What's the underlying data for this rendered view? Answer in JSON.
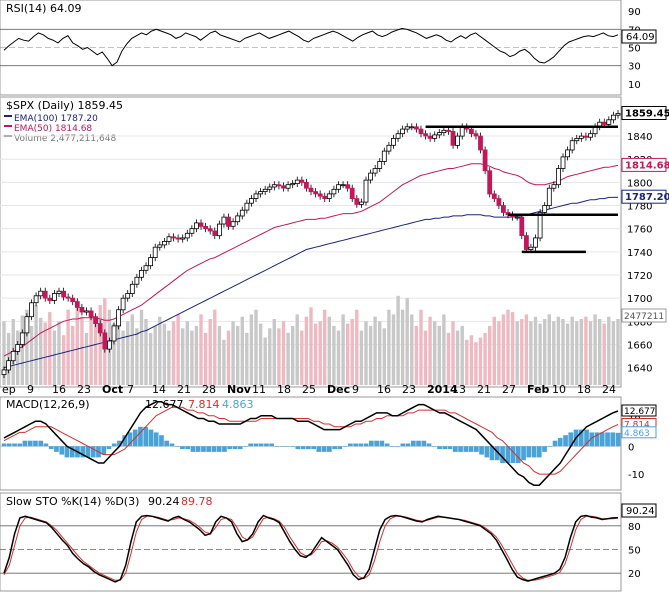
{
  "chart_data": {
    "type": "stock-chart",
    "symbol_label": "$SPX (Daily) 1859.45",
    "price_label": "1859.45",
    "x_tick_labels": [
      "ep",
      "9",
      "16",
      "23",
      "Oct",
      "7",
      "14",
      "21",
      "28",
      "Nov",
      "11",
      "18",
      "25",
      "Dec",
      "9",
      "16",
      "23",
      "2014",
      "13",
      "21",
      "27",
      "Feb",
      "10",
      "18",
      "24"
    ],
    "rsi": {
      "title": "RSI(14) 64.09",
      "value_label": "64.09",
      "y_ticks": [
        "90",
        "70",
        "50",
        "30",
        "10"
      ],
      "ylim": [
        0,
        100
      ],
      "guide_levels": [
        70,
        30
      ],
      "values": [
        47,
        52,
        56,
        60,
        58,
        57,
        62,
        66,
        64,
        60,
        58,
        55,
        60,
        63,
        55,
        52,
        48,
        50,
        46,
        42,
        45,
        38,
        30,
        34,
        46,
        54,
        60,
        63,
        66,
        64,
        68,
        70,
        68,
        66,
        64,
        60,
        62,
        66,
        64,
        62,
        58,
        62,
        66,
        68,
        64,
        62,
        60,
        58,
        56,
        60,
        62,
        64,
        66,
        63,
        60,
        62,
        64,
        66,
        68,
        65,
        62,
        58,
        56,
        60,
        62,
        64,
        66,
        68,
        66,
        63,
        60,
        57,
        61,
        64,
        66,
        68,
        64,
        62,
        64,
        67,
        69,
        71,
        70,
        68,
        66,
        63,
        60,
        62,
        64,
        62,
        58,
        56,
        60,
        63,
        60,
        64,
        66,
        62,
        58,
        54,
        50,
        46,
        44,
        40,
        42,
        46,
        48,
        44,
        38,
        34,
        33,
        36,
        40,
        46,
        52,
        56,
        58,
        60,
        62,
        63,
        62,
        64,
        66,
        63,
        62,
        64
      ]
    },
    "price": {
      "ylim": [
        1625,
        1872
      ],
      "y_ticks": [
        "1840",
        "1820",
        "1800",
        "1780",
        "1760",
        "1740",
        "1720",
        "1700",
        "1680",
        "1660",
        "1640"
      ],
      "legend": [
        {
          "label": "EMA(100) 1787.20",
          "color": "#1a237e"
        },
        {
          "label": "EMA(50) 1814.68",
          "color": "#c2185b"
        },
        {
          "label": "Volume 2,477,211,648",
          "color": "#777777"
        }
      ],
      "tags": [
        {
          "text": "1859.45",
          "value": 1859.45,
          "color": "#000000"
        },
        {
          "text": "1814.68",
          "value": 1814.68,
          "color": "#c2185b"
        },
        {
          "text": "1787.20",
          "value": 1787.2,
          "color": "#1a237e"
        }
      ],
      "volume_tag": "2477211",
      "close": [
        1638,
        1646,
        1654,
        1660,
        1670,
        1684,
        1696,
        1702,
        1706,
        1700,
        1698,
        1704,
        1706,
        1701,
        1700,
        1697,
        1692,
        1688,
        1689,
        1684,
        1678,
        1670,
        1656,
        1663,
        1676,
        1690,
        1700,
        1704,
        1712,
        1718,
        1724,
        1728,
        1735,
        1744,
        1746,
        1749,
        1753,
        1752,
        1751,
        1752,
        1756,
        1760,
        1765,
        1762,
        1760,
        1758,
        1754,
        1764,
        1770,
        1762,
        1766,
        1771,
        1776,
        1782,
        1786,
        1790,
        1792,
        1794,
        1796,
        1798,
        1797,
        1795,
        1798,
        1799,
        1802,
        1800,
        1795,
        1792,
        1790,
        1788,
        1786,
        1790,
        1794,
        1798,
        1798,
        1795,
        1786,
        1781,
        1783,
        1802,
        1808,
        1812,
        1818,
        1827,
        1832,
        1838,
        1842,
        1846,
        1848,
        1848,
        1846,
        1842,
        1840,
        1838,
        1841,
        1843,
        1845,
        1844,
        1832,
        1840,
        1848,
        1846,
        1842,
        1840,
        1828,
        1810,
        1790,
        1786,
        1780,
        1774,
        1772,
        1770,
        1770,
        1754,
        1742,
        1744,
        1752,
        1774,
        1780,
        1795,
        1798,
        1812,
        1822,
        1828,
        1836,
        1838,
        1840,
        1839,
        1842,
        1848,
        1852,
        1850,
        1854,
        1858,
        1859.45
      ],
      "ema50": [
        1650,
        1652,
        1654,
        1656,
        1658,
        1661,
        1664,
        1667,
        1670,
        1672,
        1674,
        1676,
        1678,
        1680,
        1681,
        1682,
        1682,
        1683,
        1683,
        1683,
        1683,
        1682,
        1681,
        1681,
        1682,
        1684,
        1686,
        1688,
        1690,
        1692,
        1694,
        1697,
        1700,
        1703,
        1706,
        1709,
        1712,
        1715,
        1718,
        1721,
        1724,
        1726,
        1728,
        1730,
        1732,
        1734,
        1735,
        1737,
        1739,
        1741,
        1743,
        1745,
        1747,
        1749,
        1751,
        1753,
        1755,
        1757,
        1759,
        1761,
        1762,
        1763,
        1764,
        1765,
        1766,
        1767,
        1768,
        1768,
        1768,
        1769,
        1769,
        1770,
        1771,
        1772,
        1773,
        1773,
        1773,
        1774,
        1775,
        1777,
        1779,
        1781,
        1783,
        1786,
        1789,
        1792,
        1795,
        1798,
        1800,
        1802,
        1804,
        1806,
        1807,
        1808,
        1809,
        1810,
        1811,
        1812,
        1812,
        1813,
        1814,
        1815,
        1816,
        1816,
        1816,
        1815,
        1814,
        1812,
        1811,
        1809,
        1808,
        1807,
        1806,
        1804,
        1801,
        1799,
        1798,
        1798,
        1798,
        1799,
        1800,
        1801,
        1803,
        1805,
        1806,
        1807,
        1808,
        1809,
        1810,
        1811,
        1812,
        1813,
        1813,
        1814,
        1814.68
      ],
      "ema100": [
        1640,
        1641,
        1642,
        1643,
        1644,
        1645,
        1646,
        1647,
        1648,
        1649,
        1650,
        1651,
        1652,
        1653,
        1654,
        1655,
        1656,
        1657,
        1658,
        1659,
        1660,
        1661,
        1662,
        1663,
        1664,
        1665,
        1666,
        1667,
        1668,
        1669,
        1671,
        1672,
        1674,
        1676,
        1678,
        1680,
        1682,
        1684,
        1686,
        1688,
        1690,
        1692,
        1694,
        1696,
        1698,
        1700,
        1702,
        1704,
        1706,
        1708,
        1710,
        1712,
        1714,
        1716,
        1718,
        1720,
        1722,
        1724,
        1726,
        1728,
        1730,
        1732,
        1734,
        1736,
        1738,
        1740,
        1742,
        1743,
        1744,
        1745,
        1746,
        1747,
        1748,
        1749,
        1750,
        1751,
        1752,
        1753,
        1754,
        1755,
        1756,
        1757,
        1758,
        1759,
        1760,
        1761,
        1762,
        1763,
        1764,
        1765,
        1766,
        1767,
        1768,
        1768,
        1769,
        1769,
        1770,
        1770,
        1771,
        1771,
        1771,
        1772,
        1772,
        1772,
        1772,
        1771,
        1771,
        1770,
        1770,
        1770,
        1770,
        1770,
        1771,
        1771,
        1772,
        1773,
        1774,
        1775,
        1776,
        1777,
        1778,
        1779,
        1780,
        1781,
        1782,
        1782,
        1783,
        1784,
        1785,
        1785,
        1786,
        1786,
        1787,
        1787,
        1787.2
      ],
      "volume": [
        1680,
        1670,
        1682,
        1672,
        1685,
        1690,
        1676,
        1694,
        1683,
        1679,
        1688,
        1672,
        1680,
        1668,
        1690,
        1676,
        1698,
        1684,
        1670,
        1686,
        1680,
        1694,
        1700,
        1690,
        1678,
        1684,
        1672,
        1680,
        1686,
        1674,
        1690,
        1682,
        1670,
        1676,
        1684,
        1678,
        1672,
        1680,
        1686,
        1674,
        1680,
        1672,
        1676,
        1686,
        1670,
        1682,
        1690,
        1676,
        1664,
        1672,
        1680,
        1676,
        1684,
        1670,
        1686,
        1690,
        1678,
        1666,
        1674,
        1682,
        1674,
        1680,
        1670,
        1676,
        1686,
        1672,
        1684,
        1692,
        1678,
        1680,
        1690,
        1684,
        1676,
        1672,
        1686,
        1678,
        1682,
        1690,
        1672,
        1680,
        1676,
        1684,
        1680,
        1674,
        1690,
        1686,
        1702,
        1690,
        1700,
        1686,
        1676,
        1690,
        1672,
        1684,
        1680,
        1676,
        1686,
        1670,
        1680,
        1672,
        1676,
        1664,
        1668,
        1662,
        1666,
        1670,
        1676,
        1684,
        1680,
        1686,
        1690,
        1688,
        1680,
        1682,
        1686,
        1680,
        1684,
        1678,
        1682,
        1686,
        1680,
        1684,
        1682,
        1678,
        1684,
        1680,
        1682,
        1684,
        1680,
        1686,
        1682,
        1678,
        1684,
        1680,
        1682
      ],
      "resistance_lines": [
        {
          "level": 1848,
          "from_index": 92,
          "to_index": 134
        },
        {
          "level": 1772,
          "from_index": 110,
          "to_index": 134
        },
        {
          "level": 1740,
          "from_index": 113,
          "to_index": 127
        }
      ]
    },
    "macd": {
      "title": "MACD(12,26,9)",
      "macd_label": "12.677",
      "signal_label": "7.814",
      "hist_label": "4.863",
      "colors": {
        "macd": "#000000",
        "signal": "#d32f2f",
        "hist": "#4aa3d8"
      },
      "y_ticks": [
        "10",
        "0",
        "-10"
      ],
      "ylim": [
        -15,
        17
      ],
      "macd": [
        3,
        4,
        5,
        6,
        7,
        8,
        9,
        9,
        8,
        6,
        4,
        2,
        0,
        -1,
        -2,
        -3,
        -4,
        -5,
        -6,
        -6,
        -4,
        -2,
        0,
        3,
        6,
        9,
        12,
        14,
        15,
        16,
        16,
        15,
        15,
        14,
        13,
        12,
        11,
        10,
        10,
        9,
        9,
        8,
        8,
        8,
        8,
        8,
        9,
        10,
        10,
        11,
        11,
        11,
        10,
        10,
        10,
        10,
        9,
        9,
        9,
        8,
        7,
        6,
        6,
        6,
        6,
        7,
        8,
        9,
        9,
        10,
        11,
        12,
        12,
        12,
        11,
        11,
        12,
        13,
        14,
        15,
        15,
        14,
        13,
        12,
        12,
        11,
        10,
        9,
        8,
        7,
        6,
        4,
        2,
        0,
        -2,
        -4,
        -6,
        -8,
        -10,
        -11,
        -13,
        -14,
        -14,
        -12,
        -10,
        -8,
        -6,
        -3,
        0,
        3,
        5,
        7,
        8,
        9,
        10,
        11,
        12,
        12.677
      ],
      "signal": [
        2,
        3,
        4,
        5,
        5,
        6,
        7,
        7,
        7,
        7,
        6,
        5,
        4,
        3,
        2,
        1,
        0,
        -1,
        -2,
        -3,
        -3,
        -3,
        -2,
        -1,
        1,
        3,
        5,
        7,
        9,
        11,
        12,
        13,
        14,
        14,
        14,
        13,
        13,
        12,
        12,
        11,
        11,
        10,
        10,
        9,
        9,
        9,
        9,
        9,
        9,
        10,
        10,
        10,
        10,
        10,
        10,
        10,
        10,
        10,
        10,
        9,
        9,
        8,
        8,
        7,
        7,
        7,
        7,
        8,
        8,
        9,
        9,
        10,
        10,
        11,
        11,
        11,
        11,
        12,
        12,
        13,
        13,
        13,
        13,
        13,
        13,
        12,
        12,
        11,
        10,
        9,
        8,
        7,
        6,
        5,
        3,
        2,
        0,
        -2,
        -4,
        -6,
        -7,
        -9,
        -10,
        -10,
        -10,
        -10,
        -9,
        -7,
        -5,
        -3,
        -1,
        1,
        3,
        4,
        5,
        6,
        7,
        7.814
      ],
      "hist": [
        1,
        1,
        1,
        1,
        2,
        2,
        2,
        2,
        1,
        -1,
        -2,
        -3,
        -4,
        -4,
        -4,
        -4,
        -4,
        -4,
        -4,
        -3,
        -1,
        1,
        2,
        4,
        5,
        6,
        7,
        7,
        6,
        5,
        4,
        2,
        1,
        0,
        -1,
        -1,
        -2,
        -2,
        -2,
        -2,
        -2,
        -2,
        -2,
        -1,
        -1,
        -1,
        0,
        1,
        1,
        1,
        1,
        1,
        0,
        0,
        0,
        0,
        -1,
        -1,
        -1,
        -1,
        -2,
        -2,
        -2,
        -1,
        -1,
        0,
        1,
        1,
        1,
        1,
        2,
        2,
        2,
        1,
        0,
        0,
        1,
        1,
        2,
        2,
        2,
        1,
        0,
        -1,
        -1,
        -1,
        -2,
        -2,
        -2,
        -2,
        -2,
        -3,
        -4,
        -5,
        -5,
        -6,
        -6,
        -6,
        -6,
        -5,
        -4,
        -4,
        -4,
        -2,
        0,
        2,
        3,
        4,
        5,
        6,
        6,
        6,
        5,
        5,
        5,
        5,
        5,
        4.863
      ]
    },
    "stochastic": {
      "title": "Slow STO %K(14) %D(3)",
      "k_label": "90.24",
      "d_label": "89.78",
      "colors": {
        "k": "#000000",
        "d": "#d32f2f"
      },
      "y_ticks": [
        "80",
        "50",
        "20"
      ],
      "ylim": [
        0,
        100
      ],
      "guide_levels": [
        80,
        50,
        20
      ],
      "k": [
        20,
        40,
        70,
        90,
        92,
        90,
        88,
        86,
        84,
        78,
        70,
        62,
        55,
        45,
        38,
        32,
        28,
        22,
        18,
        15,
        12,
        9,
        12,
        30,
        60,
        85,
        92,
        93,
        92,
        90,
        88,
        86,
        90,
        92,
        88,
        85,
        80,
        75,
        68,
        70,
        85,
        92,
        90,
        85,
        70,
        60,
        62,
        70,
        85,
        93,
        90,
        88,
        84,
        72,
        60,
        50,
        42,
        40,
        45,
        55,
        65,
        60,
        55,
        50,
        40,
        30,
        18,
        12,
        14,
        25,
        50,
        75,
        88,
        92,
        93,
        92,
        90,
        88,
        86,
        85,
        88,
        90,
        92,
        91,
        90,
        89,
        88,
        86,
        84,
        82,
        80,
        75,
        70,
        62,
        50,
        38,
        25,
        15,
        12,
        10,
        12,
        14,
        16,
        18,
        20,
        25,
        40,
        65,
        85,
        92,
        93,
        91,
        90,
        88,
        89,
        90,
        90.24
      ],
      "d": [
        18,
        30,
        55,
        80,
        90,
        91,
        89,
        87,
        85,
        80,
        74,
        66,
        58,
        50,
        42,
        35,
        30,
        25,
        20,
        17,
        14,
        11,
        11,
        20,
        45,
        72,
        88,
        92,
        92,
        91,
        89,
        87,
        88,
        90,
        89,
        87,
        83,
        78,
        72,
        70,
        78,
        88,
        90,
        88,
        78,
        66,
        62,
        66,
        78,
        89,
        91,
        89,
        86,
        78,
        66,
        56,
        46,
        42,
        43,
        50,
        60,
        61,
        58,
        53,
        45,
        36,
        24,
        16,
        13,
        18,
        36,
        60,
        80,
        89,
        92,
        92,
        91,
        89,
        87,
        86,
        87,
        89,
        91,
        91,
        90,
        89,
        88,
        87,
        85,
        83,
        81,
        77,
        72,
        66,
        56,
        44,
        32,
        20,
        14,
        11,
        11,
        12,
        14,
        16,
        18,
        21,
        32,
        52,
        75,
        88,
        92,
        92,
        91,
        89,
        89,
        89,
        89.78
      ]
    }
  }
}
